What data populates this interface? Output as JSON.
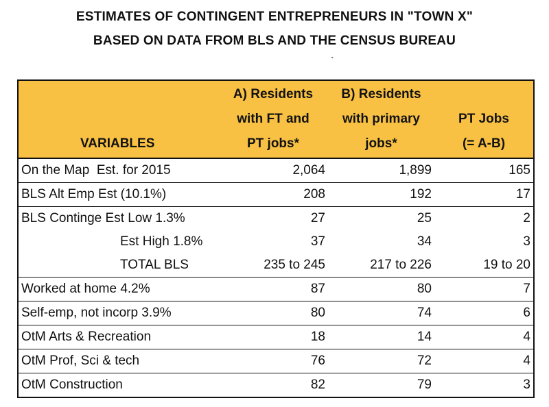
{
  "title_line1": "ESTIMATES OF CONTINGENT ENTREPRENEURS IN \"TOWN X\"",
  "title_line2": "BASED ON DATA FROM BLS AND THE CENSUS BUREAU",
  "stray_mark": "`",
  "header": {
    "variables": "VARIABLES",
    "col_a": [
      "A) Residents",
      "with FT and",
      "PT jobs*"
    ],
    "col_b": [
      "B) Residents",
      "with primary",
      "jobs*"
    ],
    "col_c": [
      "PT Jobs",
      "(= A-B)"
    ]
  },
  "rows": [
    {
      "label": "On the Map  Est. for 2015",
      "a": "2,064",
      "b": "1,899",
      "c": "165"
    },
    {
      "label": "BLS Alt Emp Est (10.1%)",
      "a": "208",
      "b": "192",
      "c": "17"
    },
    {
      "label": "BLS Continge Est Low 1.3%",
      "a": "27",
      "b": "25",
      "c": "2"
    },
    {
      "label": "Est High 1.8%",
      "a": "37",
      "b": "34",
      "c": "3"
    },
    {
      "label": "TOTAL BLS",
      "a": "235 to 245",
      "b": "217 to 226",
      "c": "19 to 20"
    },
    {
      "label": "Worked at home 4.2%",
      "a": "87",
      "b": "80",
      "c": "7"
    },
    {
      "label": "Self-emp, not incorp 3.9%",
      "a": "80",
      "b": "74",
      "c": "6"
    },
    {
      "label": "OtM Arts & Recreation",
      "a": "18",
      "b": "14",
      "c": "4"
    },
    {
      "label": "OtM Prof, Sci & tech",
      "a": "76",
      "b": "72",
      "c": "4"
    },
    {
      "label": "OtM Construction",
      "a": "82",
      "b": "79",
      "c": "3"
    }
  ],
  "colors": {
    "header_bg": "#f8c143",
    "border": "#111111"
  }
}
